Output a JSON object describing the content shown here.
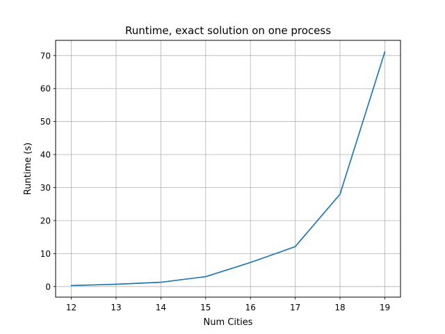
{
  "chart_data": {
    "type": "line",
    "title": "Runtime, exact solution on one process",
    "xlabel": "Num Cities",
    "ylabel": "Runtime (s)",
    "x": [
      12,
      13,
      14,
      15,
      16,
      17,
      18,
      19
    ],
    "xticks": [
      "12",
      "13",
      "14",
      "15",
      "16",
      "17",
      "18",
      "19"
    ],
    "yticks": [
      "0",
      "10",
      "20",
      "30",
      "40",
      "50",
      "60",
      "70"
    ],
    "xlim": [
      11.65,
      19.35
    ],
    "ylim": [
      -3.2,
      74.6
    ],
    "grid": true,
    "series": [
      {
        "color": "#1f77b4",
        "values": [
          0.3,
          0.7,
          1.3,
          3.0,
          7.3,
          12.1,
          28.0,
          71.1
        ]
      }
    ]
  }
}
